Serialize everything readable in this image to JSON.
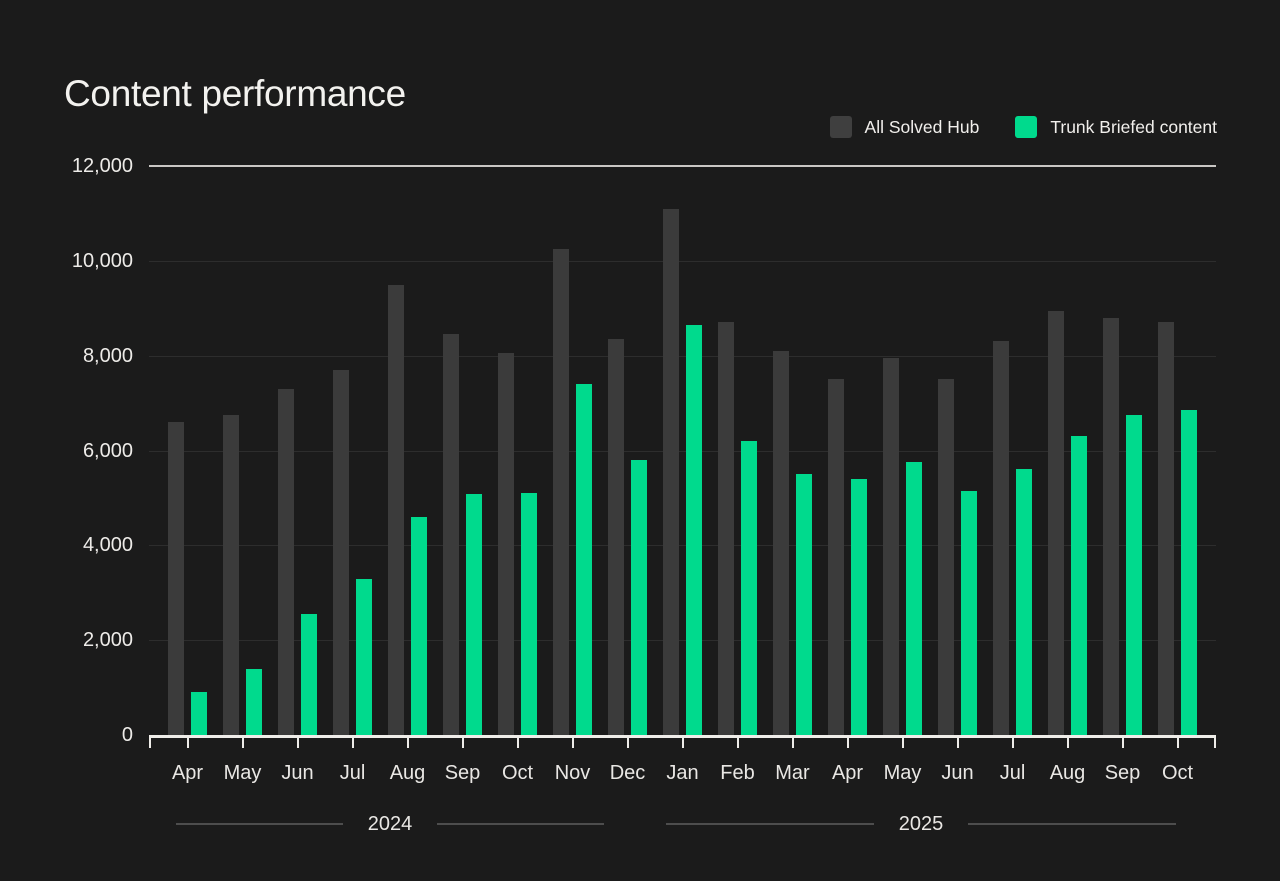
{
  "title": "Content performance",
  "legend": [
    {
      "label": "All Solved Hub",
      "color": "#3f3f3f"
    },
    {
      "label": "Trunk Briefed content",
      "color": "#00da8d"
    }
  ],
  "colors": {
    "background": "#1b1b1b",
    "bar_gray": "#3b3b3b",
    "bar_green": "#00da8d",
    "axis": "#efede9",
    "grid_faint": "#2d2d2d",
    "grid_top": "#c9c7c4",
    "label_text": "#edebe8",
    "divider_rule": "#4d4d4d"
  },
  "chart_data": {
    "type": "bar",
    "title": "Content performance",
    "categories": [
      "Apr",
      "May",
      "Jun",
      "Jul",
      "Aug",
      "Sep",
      "Oct",
      "Nov",
      "Dec",
      "Jan",
      "Feb",
      "Mar",
      "Apr",
      "May",
      "Jun",
      "Jul",
      "Aug",
      "Sep",
      "Oct"
    ],
    "year_groups": [
      {
        "label": "2024",
        "months": 9
      },
      {
        "label": "2025",
        "months": 10
      }
    ],
    "series": [
      {
        "name": "All Solved Hub",
        "color": "#3b3b3b",
        "values": [
          6600,
          6750,
          7300,
          7700,
          9500,
          8450,
          8050,
          10250,
          8350,
          11100,
          8700,
          8100,
          7500,
          7950,
          7500,
          8300,
          8950,
          8800,
          8710
        ]
      },
      {
        "name": "Trunk Briefed content",
        "color": "#00da8d",
        "values": [
          900,
          1400,
          2550,
          3300,
          4600,
          5080,
          5110,
          7400,
          5800,
          8650,
          6200,
          5500,
          5400,
          5750,
          5150,
          5600,
          6300,
          6750,
          6850
        ]
      }
    ],
    "ylim": [
      0,
      12000
    ],
    "y_ticks": [
      {
        "value": 12000,
        "label": "12,000"
      },
      {
        "value": 10000,
        "label": "10,000"
      },
      {
        "value": 8000,
        "label": "8,000"
      },
      {
        "value": 6000,
        "label": "6,000"
      },
      {
        "value": 4000,
        "label": "4,000"
      },
      {
        "value": 2000,
        "label": "2,000"
      },
      {
        "value": 0,
        "label": "0"
      }
    ],
    "grid": "horizontal",
    "legend_position": "top-right"
  }
}
